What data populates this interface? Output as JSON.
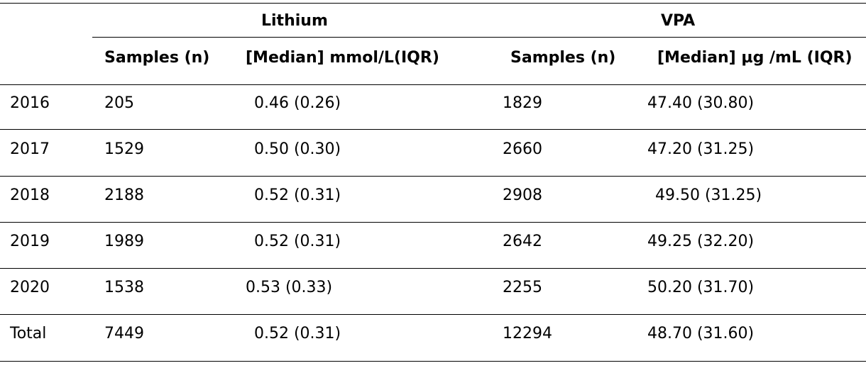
{
  "table": {
    "groups": [
      {
        "label": "Lithium"
      },
      {
        "label": "VPA"
      }
    ],
    "subheaders": [
      "",
      "Samples (n)",
      "[Median] mmol/L(IQR)",
      "Samples (n)",
      "[Median] µg /mL (IQR)"
    ],
    "rows": [
      [
        "2016",
        "205",
        "0.46 (0.26)",
        "1829",
        "47.40 (30.80)"
      ],
      [
        "2017",
        "1529",
        "0.50 (0.30)",
        "2660",
        "47.20 (31.25)"
      ],
      [
        "2018",
        "2188",
        "0.52 (0.31)",
        "2908",
        "49.50 (31.25)"
      ],
      [
        "2019",
        "1989",
        "0.52 (0.31)",
        "2642",
        "49.25 (32.20)"
      ],
      [
        "2020",
        "1538",
        "0.53 (0.33)",
        "2255",
        "50.20 (31.70)"
      ],
      [
        "Total",
        "7449",
        "0.52 (0.31)",
        "12294",
        "48.70 (31.60)"
      ]
    ]
  }
}
